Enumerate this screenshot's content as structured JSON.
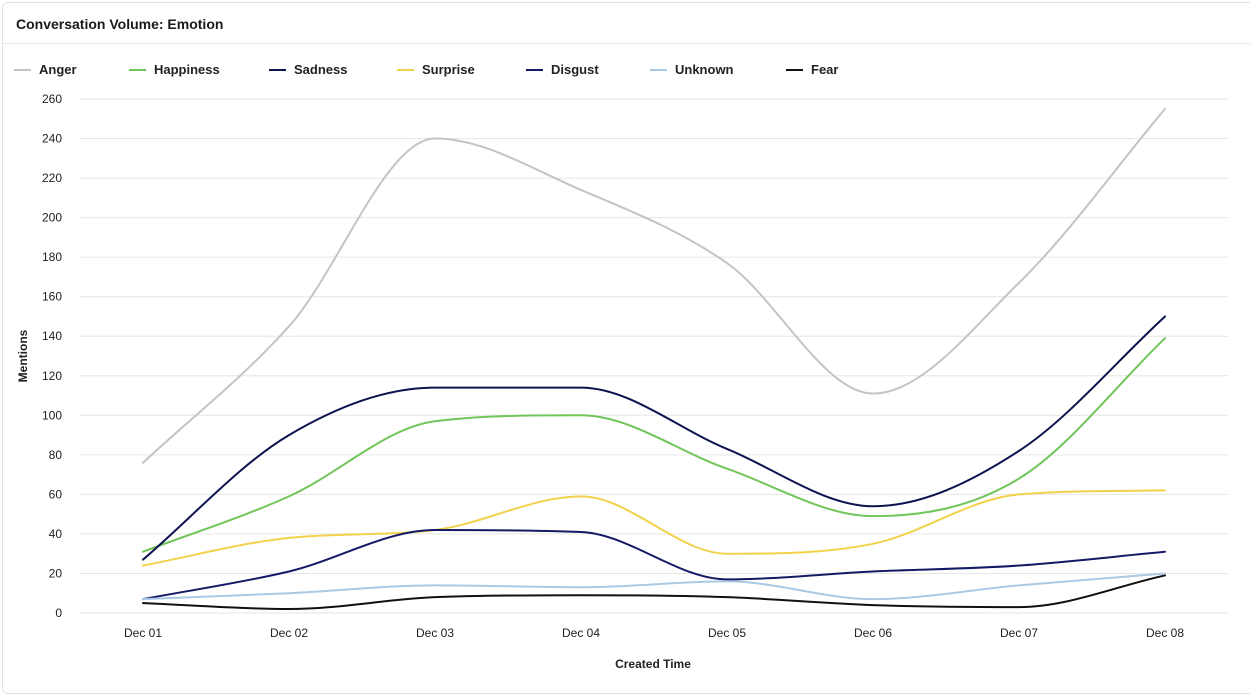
{
  "widget": {
    "title": "Conversation Volume: Emotion"
  },
  "chart_data": {
    "type": "line",
    "smooth": true,
    "title": "Conversation Volume: Emotion",
    "xlabel": "Created Time",
    "ylabel": "Mentions",
    "ylim": [
      0,
      260
    ],
    "ytick_step": 20,
    "grid": true,
    "legend_position": "top-left",
    "categories": [
      "Dec 01",
      "Dec 02",
      "Dec 03",
      "Dec 04",
      "Dec 05",
      "Dec 06",
      "Dec 07",
      "Dec 08"
    ],
    "series": [
      {
        "name": "Anger",
        "color": "#c4c4c4",
        "values": [
          76,
          145,
          240,
          214,
          177,
          111,
          167,
          255
        ]
      },
      {
        "name": "Happiness",
        "color": "#72c55a",
        "values": [
          31,
          59,
          97,
          100,
          73,
          49,
          68,
          139
        ]
      },
      {
        "name": "Sadness",
        "color": "#0d134f",
        "values": [
          27,
          90,
          114,
          114,
          83,
          54,
          82,
          150
        ]
      },
      {
        "name": "Surprise",
        "color": "#f2d24b",
        "values": [
          24,
          38,
          42,
          59,
          30,
          35,
          60,
          62
        ]
      },
      {
        "name": "Disgust",
        "color": "#141a66",
        "values": [
          7,
          21,
          42,
          41,
          17,
          21,
          24,
          31
        ]
      },
      {
        "name": "Unknown",
        "color": "#a9c9e4",
        "values": [
          7,
          10,
          14,
          13,
          16,
          7,
          14,
          20
        ]
      },
      {
        "name": "Fear",
        "color": "#111111",
        "values": [
          5,
          2,
          8,
          9,
          8,
          4,
          3,
          19
        ]
      }
    ]
  }
}
